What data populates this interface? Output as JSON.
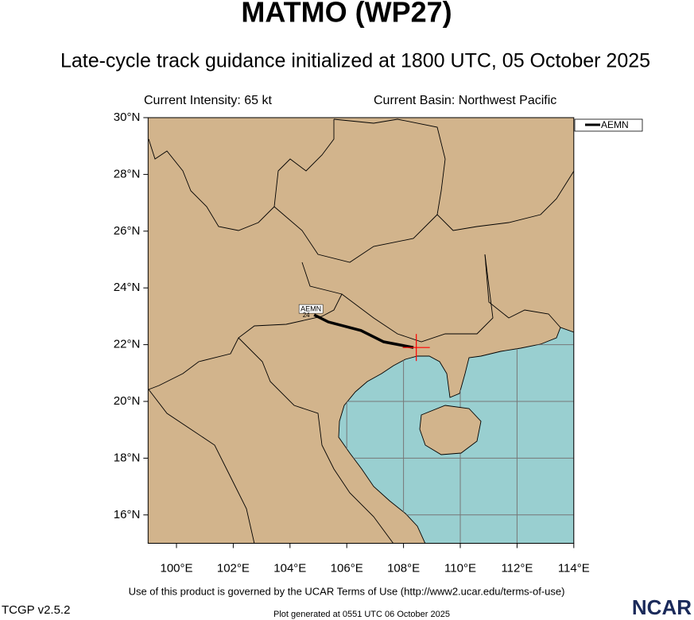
{
  "chart_data": {
    "type": "track",
    "title": "MATMO (WP27)",
    "subtitle": "Late-cycle track guidance initialized at 1800 UTC, 05 October 2025",
    "intensity": "Current Intensity: 65 kt",
    "basin": "Current Basin: Northwest Pacific",
    "xlim": [
      99,
      114
    ],
    "ylim": [
      15,
      30
    ],
    "xticks": [
      {
        "value": 100,
        "label": "100°E"
      },
      {
        "value": 102,
        "label": "102°E"
      },
      {
        "value": 104,
        "label": "104°E"
      },
      {
        "value": 106,
        "label": "106°E"
      },
      {
        "value": 108,
        "label": "108°E"
      },
      {
        "value": 110,
        "label": "110°E"
      },
      {
        "value": 112,
        "label": "112°E"
      },
      {
        "value": 114,
        "label": "114°E"
      }
    ],
    "yticks": [
      {
        "value": 16,
        "label": "16°N"
      },
      {
        "value": 18,
        "label": "18°N"
      },
      {
        "value": 20,
        "label": "20°N"
      },
      {
        "value": 22,
        "label": "22°N"
      },
      {
        "value": 24,
        "label": "24°N"
      },
      {
        "value": 26,
        "label": "26°N"
      },
      {
        "value": 28,
        "label": "28°N"
      },
      {
        "value": 30,
        "label": "30°N"
      }
    ],
    "current_position": {
      "x": 108.45,
      "y": 21.9,
      "color": "#ff0000"
    },
    "series": [
      {
        "name": "AEMN",
        "color": "#000000",
        "x": [
          108.35,
          107.3,
          106.5,
          105.35,
          104.85
        ],
        "values": [
          21.9,
          22.1,
          22.5,
          22.8,
          23.05
        ],
        "point_labels": [
          null,
          null,
          null,
          null,
          "24"
        ]
      }
    ],
    "footer": {
      "terms": "Use of this product is governed by the UCAR Terms of Use (http://www2.ucar.edu/terms-of-use)",
      "version": "TCGP v2.5.2",
      "generated": "Plot generated at 0551 UTC   06 October 2025",
      "logo": "NCAR"
    }
  }
}
